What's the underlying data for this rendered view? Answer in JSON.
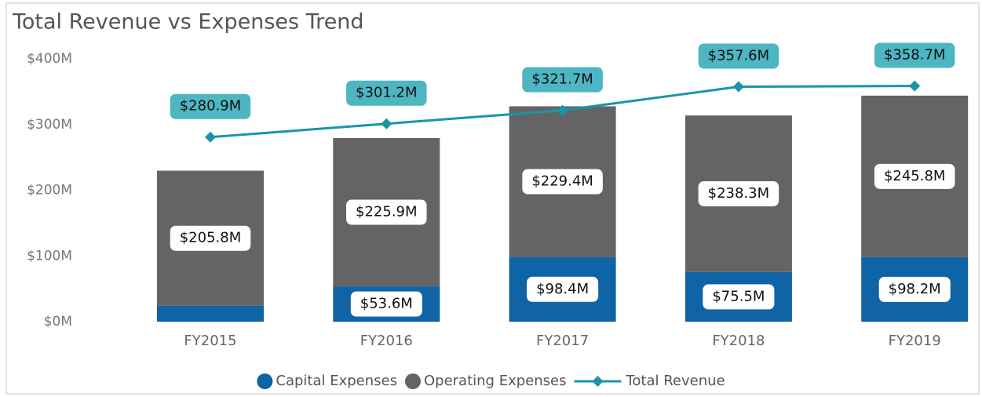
{
  "chart_data": {
    "type": "bar",
    "title": "Total Revenue vs Expenses Trend",
    "categories": [
      "FY2015",
      "FY2016",
      "FY2017",
      "FY2018",
      "FY2019"
    ],
    "stacked": true,
    "series": [
      {
        "name": "Capital Expenses",
        "type": "bar",
        "color": "#0f64a6",
        "values": [
          24,
          53.6,
          98.4,
          75.5,
          98.2
        ],
        "value_labels": [
          null,
          "$53.6M",
          "$98.4M",
          "$75.5M",
          "$98.2M"
        ]
      },
      {
        "name": "Operating Expenses",
        "type": "bar",
        "color": "#646464",
        "values": [
          205.8,
          225.9,
          229.4,
          238.3,
          245.8
        ],
        "value_labels": [
          "$205.8M",
          "$225.9M",
          "$229.4M",
          "$238.3M",
          "$245.8M"
        ]
      },
      {
        "name": "Total Revenue",
        "type": "line",
        "color": "#1896a6",
        "label_color": "#4db6c2",
        "values": [
          280.9,
          301.2,
          321.7,
          357.6,
          358.7
        ],
        "value_labels": [
          "$280.9M",
          "$301.2M",
          "$321.7M",
          "$357.6M",
          "$358.7M"
        ]
      }
    ],
    "ylim": [
      0,
      400
    ],
    "yticks": [
      {
        "value": 0,
        "label": "$0M"
      },
      {
        "value": 100,
        "label": "$100M"
      },
      {
        "value": 200,
        "label": "$200M"
      },
      {
        "value": 300,
        "label": "$300M"
      },
      {
        "value": 400,
        "label": "$400M"
      }
    ],
    "grid": false,
    "legend": "bottom"
  }
}
